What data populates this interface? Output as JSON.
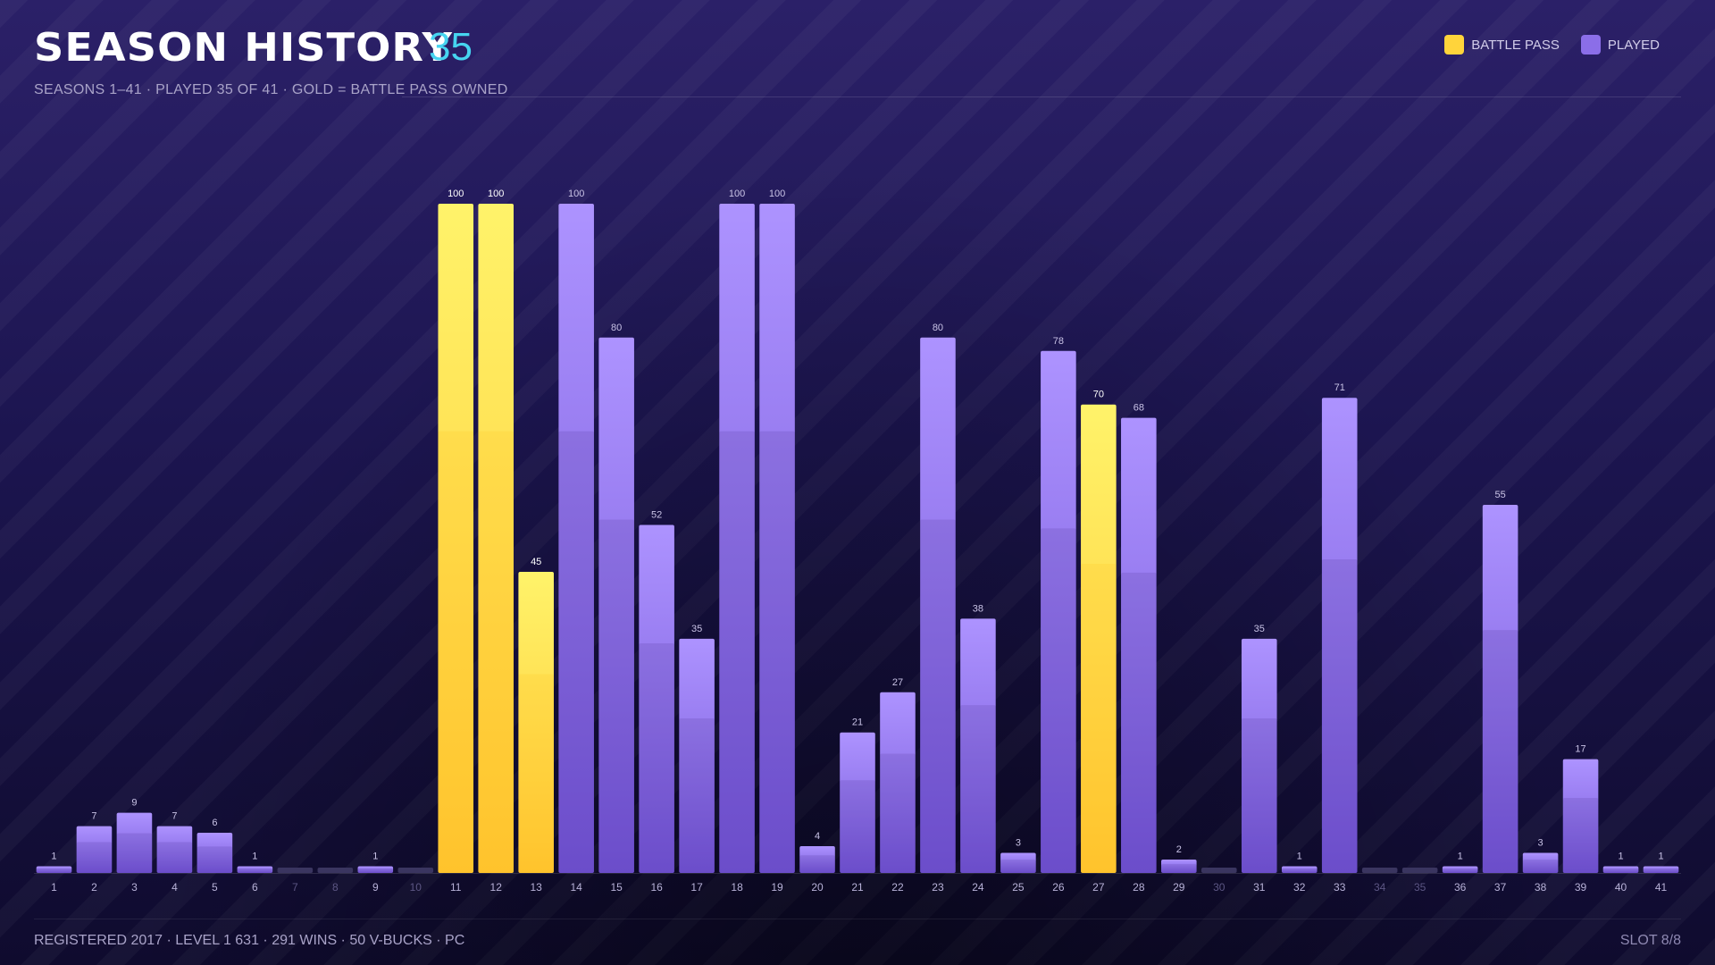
{
  "header": {
    "title": "SEASON HISTORY",
    "count": "35",
    "subtitle": "SEASONS 1–41 · PLAYED 35 OF 41 · GOLD = BATTLE PASS OWNED"
  },
  "legend": {
    "battle_pass": "BATTLE PASS",
    "played": "PLAYED"
  },
  "colors": {
    "gold": "#ffd43b",
    "purple": "#8b6ee8",
    "empty": "#3a3560",
    "accent": "#46d4f0"
  },
  "footer": {
    "left": "REGISTERED 2017 · LEVEL 1 631 · 291 WINS · 50 V-BUCKS · PC",
    "right": "SLOT 8/8"
  },
  "chart_data": {
    "type": "bar",
    "title": "SEASON HISTORY",
    "ylim": [
      0,
      100
    ],
    "grid": false,
    "legend_placement": "top-right",
    "categories": [
      "1",
      "2",
      "3",
      "4",
      "5",
      "6",
      "7",
      "8",
      "9",
      "10",
      "11",
      "12",
      "13",
      "14",
      "15",
      "16",
      "17",
      "18",
      "19",
      "20",
      "21",
      "22",
      "23",
      "24",
      "25",
      "26",
      "27",
      "28",
      "29",
      "30",
      "31",
      "32",
      "33",
      "34",
      "35",
      "36",
      "37",
      "38",
      "39",
      "40",
      "41"
    ],
    "values": [
      1,
      7,
      9,
      7,
      6,
      1,
      null,
      null,
      1,
      null,
      100,
      100,
      45,
      100,
      80,
      52,
      35,
      100,
      100,
      4,
      21,
      27,
      80,
      38,
      3,
      78,
      70,
      68,
      2,
      null,
      35,
      1,
      71,
      null,
      null,
      1,
      55,
      3,
      17,
      1,
      1
    ],
    "battle_pass": [
      false,
      false,
      false,
      false,
      false,
      false,
      false,
      false,
      false,
      false,
      true,
      true,
      true,
      false,
      false,
      false,
      false,
      false,
      false,
      false,
      false,
      false,
      false,
      false,
      false,
      false,
      true,
      false,
      false,
      false,
      false,
      false,
      false,
      false,
      false,
      false,
      false,
      false,
      false,
      false,
      false
    ],
    "series": [
      {
        "name": "BATTLE PASS"
      },
      {
        "name": "PLAYED"
      }
    ]
  }
}
